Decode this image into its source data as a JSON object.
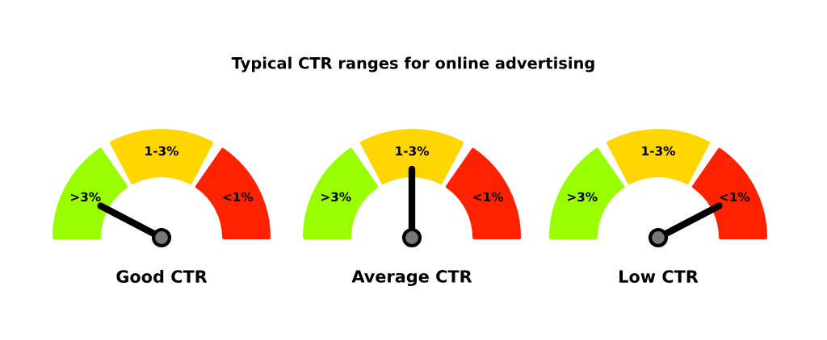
{
  "chart_data": [
    {
      "type": "donut",
      "categories": [
        ">3%",
        "1-3%",
        "<1%"
      ],
      "values": [
        33.3,
        33.4,
        33.3
      ],
      "colors": [
        "#99ff00",
        "#ffd600",
        "#ff2200"
      ],
      "needle": ">3%",
      "xlabel": "Good CTR"
    },
    {
      "type": "donut",
      "title": "Typical CTR ranges for online advertising",
      "categories": [
        ">3%",
        "1-3%",
        "<1%"
      ],
      "values": [
        33.3,
        33.4,
        33.3
      ],
      "colors": [
        "#99ff00",
        "#ffd600",
        "#ff2200"
      ],
      "needle": "1-3%",
      "xlabel": "Average CTR"
    },
    {
      "type": "donut",
      "categories": [
        ">3%",
        "1-3%",
        "<1%"
      ],
      "values": [
        33.3,
        33.4,
        33.3
      ],
      "colors": [
        "#99ff00",
        "#ffd600",
        "#ff2200"
      ],
      "needle": "<1%",
      "xlabel": "Low CTR"
    }
  ]
}
